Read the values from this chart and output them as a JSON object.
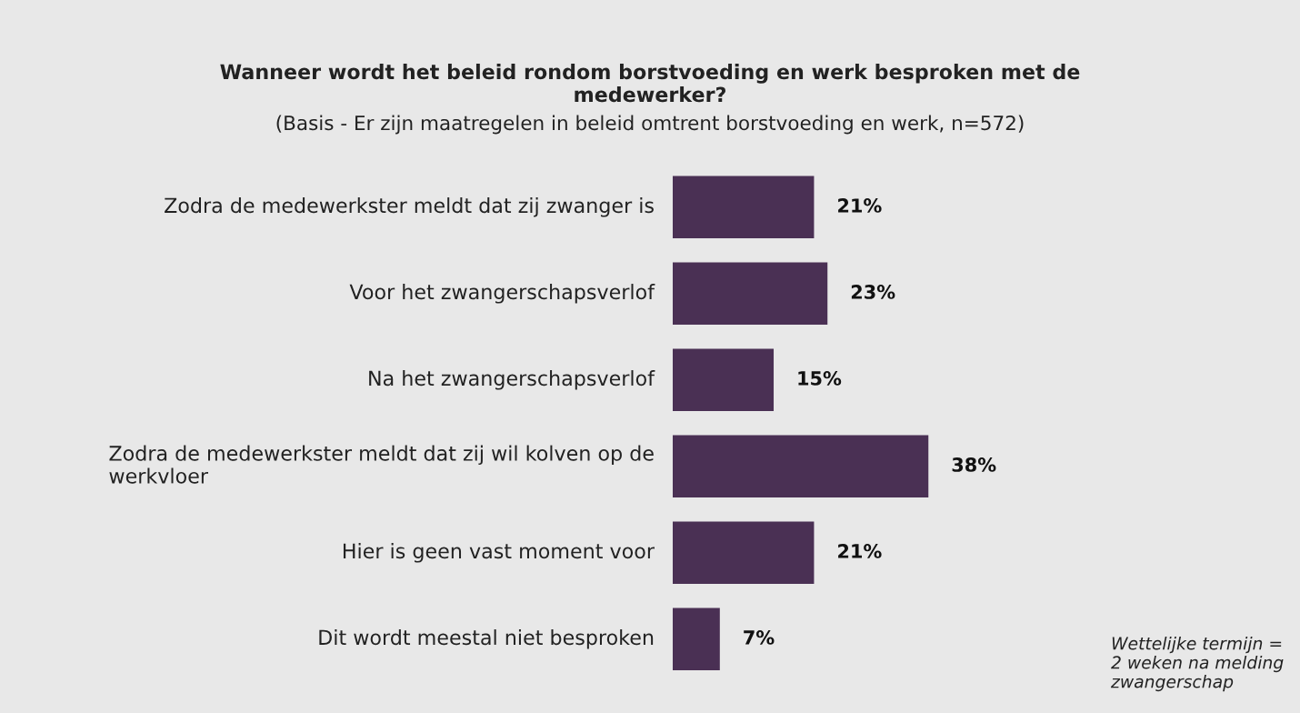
{
  "chart_data": {
    "type": "bar",
    "orientation": "horizontal",
    "title": "Wanneer wordt het beleid rondom borstvoeding en werk besproken met de medewerker?",
    "subtitle": "(Basis - Er zijn maatregelen in beleid omtrent borstvoeding en werk, n=572)",
    "categories": [
      "Zodra de medewerkster meldt dat zij zwanger is",
      "Voor het zwangerschapsverlof",
      "Na het zwangerschapsverlof",
      "Zodra de medewerkster meldt dat zij wil kolven op de werkvloer",
      "Hier is geen vast moment voor",
      "Dit wordt meestal niet besproken"
    ],
    "values": [
      21,
      23,
      15,
      38,
      21,
      7
    ],
    "value_labels": [
      "21%",
      "23%",
      "15%",
      "38%",
      "21%",
      "7%"
    ],
    "color": "#4a3054",
    "annotations": [
      "Wettelijke termijn = 2 weken na melding zwangerschap"
    ],
    "data_labels": false
  }
}
